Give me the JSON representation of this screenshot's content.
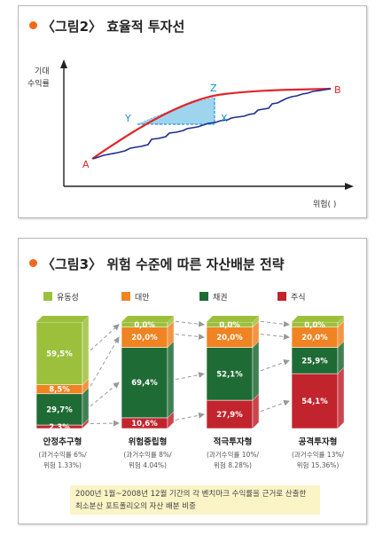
{
  "figure2": {
    "title": "〈그림2〉 효율적 투자선",
    "ylabel_line1": "기대",
    "ylabel_line2": "수익률",
    "xlabel": "위험( )",
    "points": {
      "A": "A",
      "B": "B",
      "X": "X",
      "Y": "Y",
      "Z": "Z"
    },
    "colors": {
      "frontier": "#e0262b",
      "portfolio": "#1f2d8f",
      "shade": "#9fd4ee"
    }
  },
  "figure3": {
    "title": "〈그림3〉 위험 수준에 따른 자산배분 전략",
    "footnote_line1": "2000년 1월~2008년 12월 기간의 각 벤치마크 수익률을 근거로 산출한",
    "footnote_line2": "최소분산 포트폴리오의 자산 배분 비중"
  },
  "chart_data": {
    "type": "bar",
    "stacked": true,
    "categories": [
      "안정추구형",
      "위험중립형",
      "적극투자형",
      "공격투자형"
    ],
    "category_notes": [
      [
        "(과거수익률 6%/",
        "위험 1.33%)"
      ],
      [
        "(과거수익률 8%/",
        "위험 4.04%)"
      ],
      [
        "(과거수익률 10%/",
        "위험 8.28%)"
      ],
      [
        "(과거수익률 13%/",
        "위험 15.36%)"
      ]
    ],
    "series": [
      {
        "name": "주식",
        "color": "#c2242d",
        "values": [
          2.3,
          10.6,
          27.9,
          54.1
        ],
        "labels": [
          "2,3%",
          "10,6%",
          "27,9%",
          "54,1%"
        ]
      },
      {
        "name": "채권",
        "color": "#1f6b35",
        "values": [
          29.7,
          69.4,
          52.1,
          25.9
        ],
        "labels": [
          "29,7%",
          "69,4%",
          "52,1%",
          "25,9%"
        ]
      },
      {
        "name": "대안",
        "color": "#f08322",
        "values": [
          8.5,
          20.0,
          20.0,
          20.0
        ],
        "labels": [
          "8,5%",
          "20,0%",
          "20,0%",
          "20,0%"
        ]
      },
      {
        "name": "유동성",
        "color": "#9cc03c",
        "values": [
          59.5,
          0.0,
          0.0,
          0.0
        ],
        "labels": [
          "59,5%",
          "0,0%",
          "0,0%",
          "0,0%"
        ]
      }
    ],
    "legend_order": [
      "유동성",
      "대안",
      "채권",
      "주식"
    ],
    "legend_position": "top",
    "ylim": [
      0,
      100
    ]
  }
}
